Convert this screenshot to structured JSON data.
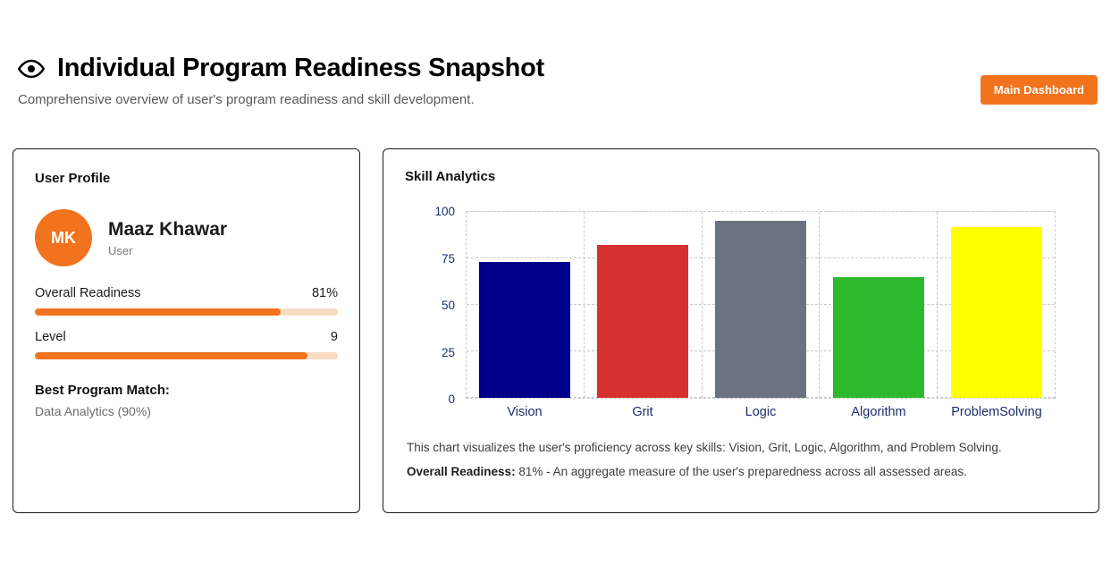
{
  "page": {
    "title": "Individual Program Readiness Snapshot",
    "subtitle": "Comprehensive overview of user's program readiness and skill development.",
    "dashboard_button": "Main Dashboard"
  },
  "profile": {
    "card_title": "User Profile",
    "avatar_initials": "MK",
    "name": "Maaz Khawar",
    "role": "User",
    "overall_readiness_label": "Overall Readiness",
    "overall_readiness_value": "81%",
    "overall_readiness_percent": 81,
    "level_label": "Level",
    "level_value": "9",
    "level_percent": 90,
    "best_match_label": "Best Program Match:",
    "best_match_value": "Data Analytics (90%)"
  },
  "analytics": {
    "card_title": "Skill Analytics",
    "description": "This chart visualizes the user's proficiency across key skills: Vision, Grit, Logic, Algorithm, and Problem Solving.",
    "readiness_bold": "Overall Readiness:",
    "readiness_rest": "81% - An aggregate measure of the user's preparedness across all assessed areas."
  },
  "chart_data": {
    "type": "bar",
    "categories": [
      "Vision",
      "Grit",
      "Logic",
      "Algorithm",
      "ProblemSolving"
    ],
    "values": [
      73,
      82,
      95,
      65,
      92
    ],
    "colors": [
      "#00008b",
      "#d63031",
      "#6c7380",
      "#2eb82e",
      "#ffff00"
    ],
    "yticks": [
      0,
      25,
      50,
      75,
      100
    ],
    "ylim": [
      0,
      100
    ],
    "grid": "dashed",
    "legend": "none"
  },
  "colors": {
    "accent_orange": "#f2731d",
    "progress_track": "#f8dcc2",
    "tick_label": "#1b2e6e"
  }
}
